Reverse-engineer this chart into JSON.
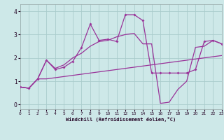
{
  "background_color": "#cde8e8",
  "grid_color": "#aacccc",
  "line_color": "#993399",
  "xlabel": "Windchill (Refroidissement éolien,°C)",
  "xlim": [
    0,
    23
  ],
  "ylim": [
    -0.2,
    4.3
  ],
  "xticks": [
    0,
    1,
    2,
    3,
    4,
    5,
    6,
    7,
    8,
    9,
    10,
    11,
    12,
    13,
    14,
    15,
    16,
    17,
    18,
    19,
    20,
    21,
    22,
    23
  ],
  "yticks": [
    0,
    1,
    2,
    3,
    4
  ],
  "line1_x": [
    0,
    1,
    2,
    3,
    4,
    5,
    6,
    7,
    8,
    9,
    10,
    11,
    12,
    13,
    14,
    15,
    16,
    17,
    18,
    19,
    20,
    21,
    22,
    23
  ],
  "line1_y": [
    0.75,
    0.7,
    1.1,
    1.1,
    1.15,
    1.2,
    1.25,
    1.3,
    1.35,
    1.4,
    1.45,
    1.5,
    1.55,
    1.6,
    1.65,
    1.7,
    1.75,
    1.8,
    1.85,
    1.9,
    1.95,
    2.0,
    2.05,
    2.1
  ],
  "line2_x": [
    0,
    1,
    2,
    3,
    4,
    5,
    6,
    7,
    8,
    9,
    10,
    11,
    12,
    13,
    14,
    15,
    16,
    17,
    18,
    19,
    20,
    21,
    22,
    23
  ],
  "line2_y": [
    0.75,
    0.7,
    1.1,
    1.9,
    1.5,
    1.6,
    1.85,
    2.45,
    3.45,
    2.75,
    2.8,
    2.7,
    3.85,
    3.85,
    3.6,
    1.35,
    1.35,
    1.35,
    1.35,
    1.35,
    1.5,
    2.7,
    2.75,
    2.6
  ],
  "line3_x": [
    0,
    1,
    2,
    3,
    4,
    5,
    6,
    7,
    8,
    9,
    10,
    11,
    12,
    13,
    14,
    15,
    16,
    17,
    18,
    19,
    20,
    21,
    22,
    23
  ],
  "line3_y": [
    0.75,
    0.7,
    1.1,
    1.9,
    1.55,
    1.7,
    2.0,
    2.2,
    2.5,
    2.7,
    2.75,
    2.9,
    3.0,
    3.05,
    2.6,
    2.6,
    0.05,
    0.1,
    0.65,
    1.0,
    2.45,
    2.5,
    2.75,
    2.6
  ]
}
